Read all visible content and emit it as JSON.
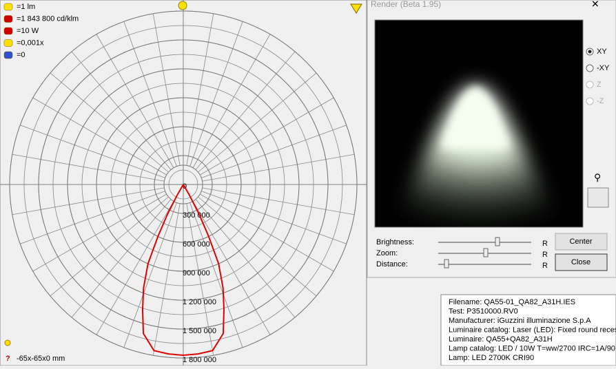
{
  "legend_items": [
    "=1 lm",
    "=1 843 800 cd/klm",
    "=10 W",
    "=0,001x",
    "=0"
  ],
  "polar": {
    "rlim": [
      0,
      1800000
    ],
    "rticks": [
      0,
      {
        "value": 300000,
        "label": "300 000"
      },
      {
        "value": 600000,
        "label": "600 000"
      },
      {
        "value": 900000,
        "label": "900 000"
      },
      {
        "value": 1200000,
        "label": "1 200 000"
      },
      {
        "value": 1500000,
        "label": "1 500 000"
      },
      {
        "value": 1800000,
        "label": "1 800 000"
      }
    ],
    "curve": {
      "color": "#e00000",
      "angles": [
        -32,
        -30,
        -28,
        -26,
        -24,
        -21,
        -18,
        -15,
        -10,
        -5,
        0,
        5,
        10,
        15,
        18,
        21,
        24,
        26,
        28,
        30,
        32
      ],
      "values": [
        0,
        120000,
        350000,
        600000,
        900000,
        1150000,
        1364000,
        1600000,
        1750000,
        1765000,
        1771000,
        1765000,
        1750000,
        1600000,
        1364000,
        1150000,
        900000,
        600000,
        350000,
        120000,
        0
      ]
    }
  },
  "dimensions": "-65x-65x0 mm",
  "render_dialog": {
    "title": "Render (Beta 1.95)",
    "view_options": [
      "XY",
      "-XY",
      "Z",
      "-Z"
    ],
    "sliders": [
      {
        "label": "Brightness:",
        "reset": "R"
      },
      {
        "label": "Zoom:",
        "reset": "R"
      },
      {
        "label": "Distance:",
        "reset": "R"
      }
    ],
    "buttons": [
      "Center",
      "Close"
    ]
  },
  "info_lines": [
    "Filename: QA55-01_QA82_A31H.IES",
    "Test: P3510000.RV0",
    "Manufacturer: iGuzzini illuminazione S.p.A",
    "Luminaire catalog: Laser (LED): Fixed round recesse",
    "Luminaire: QA55+QA82_A31H",
    "Lamp catalog: LED / 10W T=ww/2700 IRC=1A/90",
    "Lamp: LED 2700K CRI90"
  ]
}
